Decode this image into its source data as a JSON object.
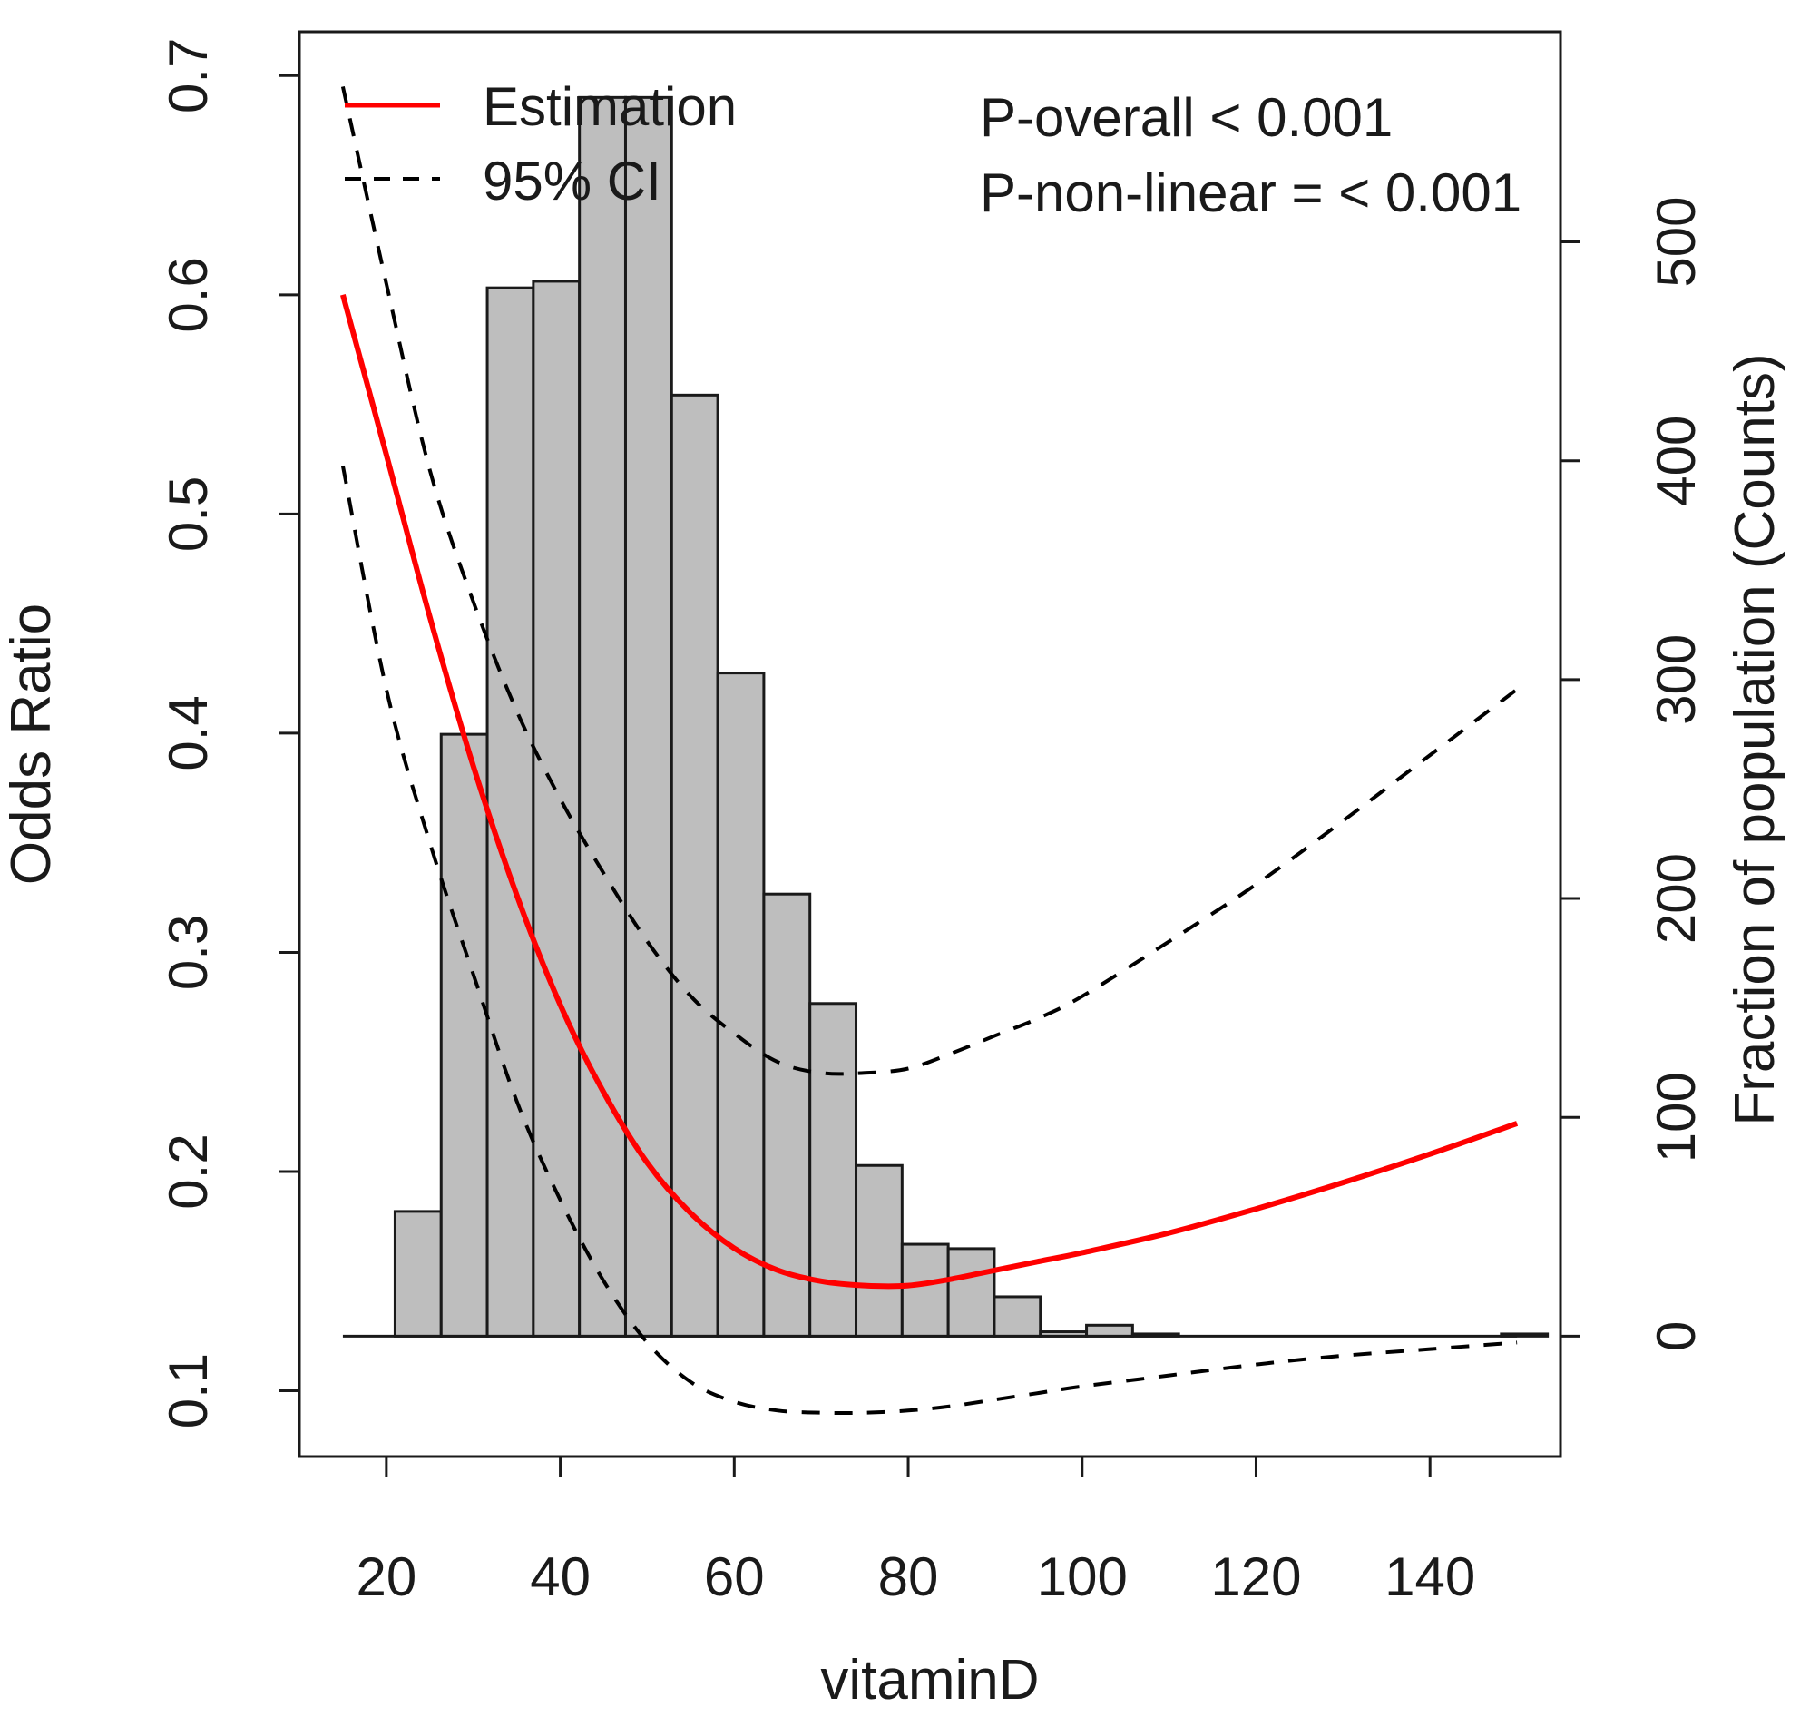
{
  "chart_data": {
    "type": "bar",
    "title": "",
    "xlabel": "vitaminD",
    "ylabel": "Odds Ratio",
    "y2label": "Fraction of population (Counts)",
    "xlim": [
      10,
      155
    ],
    "ylim": [
      0.07,
      0.72
    ],
    "y2lim": [
      -55,
      596
    ],
    "x_ticks": [
      20,
      40,
      60,
      80,
      100,
      120,
      140
    ],
    "y_ticks": [
      0.1,
      0.2,
      0.3,
      0.4,
      0.5,
      0.6,
      0.7
    ],
    "y2_ticks": [
      0,
      100,
      200,
      300,
      400,
      500
    ],
    "grid": false,
    "legend_position": "top-left",
    "legend": [
      {
        "label": "Estimation",
        "color": "#ff0000",
        "style": "solid"
      },
      {
        "label": "95% CI",
        "color": "#000000",
        "style": "dashed"
      }
    ],
    "annotations": [
      "P-overall < 0.001",
      "P-non-linear = < 0.001"
    ],
    "histogram": {
      "name": "Fraction of population (Counts)",
      "color": "#bebebe",
      "bin_width": 5.3,
      "bin_starts": [
        21,
        26.3,
        31.6,
        36.9,
        42.2,
        47.5,
        52.8,
        58.1,
        63.4,
        68.7,
        74,
        79.3,
        84.6,
        89.9,
        95.2,
        100.5,
        105.8,
        111.1,
        116.4,
        121.7,
        127,
        132.3,
        137.6,
        142.9,
        148.2
      ],
      "counts": [
        57,
        275,
        479,
        482,
        566,
        566,
        430,
        303,
        202,
        152,
        78,
        42,
        40,
        18,
        2,
        5,
        1,
        0,
        0,
        0,
        0,
        0,
        0,
        0,
        1
      ]
    },
    "series": [
      {
        "name": "Estimation",
        "color": "#ff0000",
        "style": "solid",
        "x": [
          15,
          20,
          25,
          30,
          35,
          40,
          45,
          50,
          55,
          60,
          65,
          70,
          75,
          80,
          85,
          90,
          95,
          100,
          110,
          120,
          130,
          140,
          150
        ],
        "y": [
          0.6,
          0.527,
          0.453,
          0.385,
          0.326,
          0.276,
          0.236,
          0.204,
          0.181,
          0.165,
          0.155,
          0.15,
          0.148,
          0.148,
          0.151,
          0.155,
          0.159,
          0.163,
          0.172,
          0.183,
          0.195,
          0.208,
          0.222
        ]
      },
      {
        "name": "95% CI upper",
        "color": "#000000",
        "style": "dashed",
        "x": [
          15,
          20,
          25,
          30,
          35,
          40,
          45,
          50,
          55,
          60,
          65,
          70,
          75,
          80,
          85,
          90,
          95,
          100,
          110,
          120,
          130,
          140,
          150
        ],
        "y": [
          0.695,
          0.605,
          0.52,
          0.46,
          0.41,
          0.37,
          0.336,
          0.305,
          0.28,
          0.263,
          0.25,
          0.245,
          0.245,
          0.247,
          0.254,
          0.262,
          0.27,
          0.28,
          0.305,
          0.331,
          0.36,
          0.39,
          0.42
        ]
      },
      {
        "name": "95% CI lower",
        "color": "#000000",
        "style": "dashed",
        "x": [
          15,
          20,
          25,
          30,
          35,
          40,
          45,
          50,
          55,
          60,
          65,
          70,
          75,
          80,
          85,
          90,
          95,
          100,
          110,
          120,
          130,
          140,
          150
        ],
        "y": [
          0.522,
          0.42,
          0.35,
          0.29,
          0.232,
          0.187,
          0.15,
          0.122,
          0.104,
          0.095,
          0.091,
          0.09,
          0.09,
          0.091,
          0.093,
          0.096,
          0.099,
          0.102,
          0.107,
          0.112,
          0.116,
          0.119,
          0.122
        ]
      }
    ]
  }
}
